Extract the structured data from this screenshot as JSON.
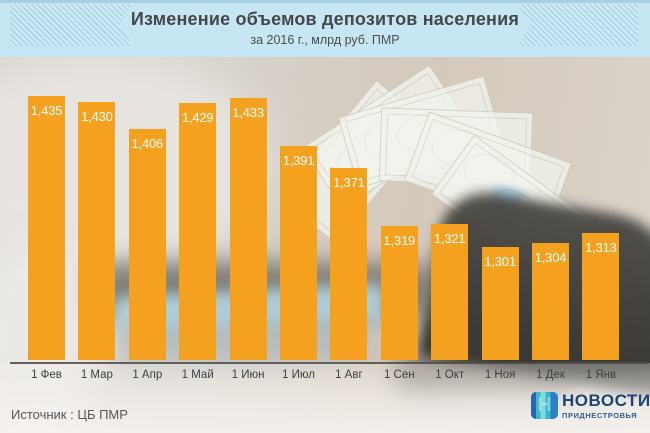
{
  "header": {
    "title": "Изменение объемов депозитов населения",
    "subtitle": "за 2016 г., млрд руб. ПМР"
  },
  "chart_data": {
    "type": "bar",
    "title": "Изменение объемов депозитов населения",
    "subtitle": "за 2016 г., млрд руб. ПМР",
    "categories": [
      "1 Фев",
      "1 Мар",
      "1 Апр",
      "1 Май",
      "1 Июн",
      "1 Июл",
      "1 Авг",
      "1 Сен",
      "1 Окт",
      "1 Ноя",
      "1 Дек",
      "1 Янв"
    ],
    "values": [
      1435,
      1430,
      1406,
      1429,
      1433,
      1391,
      1371,
      1319,
      1321,
      1301,
      1304,
      1313
    ],
    "value_labels": [
      "1,435",
      "1,430",
      "1,406",
      "1,429",
      "1,433",
      "1,391",
      "1,371",
      "1,319",
      "1,321",
      "1,301",
      "1,304",
      "1,313"
    ],
    "xlabel": "",
    "ylabel": "млрд руб. ПМР",
    "ylim": [
      1200,
      1445
    ],
    "grid": false,
    "legend": false,
    "bar_color": "#F5A120",
    "value_label_color": "#FFFFFF"
  },
  "footer": {
    "source_label": "Источник : ЦБ ПМР"
  },
  "logo": {
    "title": "НОВОСТИ",
    "subtitle": "ПРИДНЕСТРОВЬЯ"
  },
  "colors": {
    "header_background": "#C7E6F4",
    "bar": "#F5A120",
    "axis_line": "#4B4B47",
    "title_text": "#45474A",
    "logo_navy": "#1C4577"
  }
}
